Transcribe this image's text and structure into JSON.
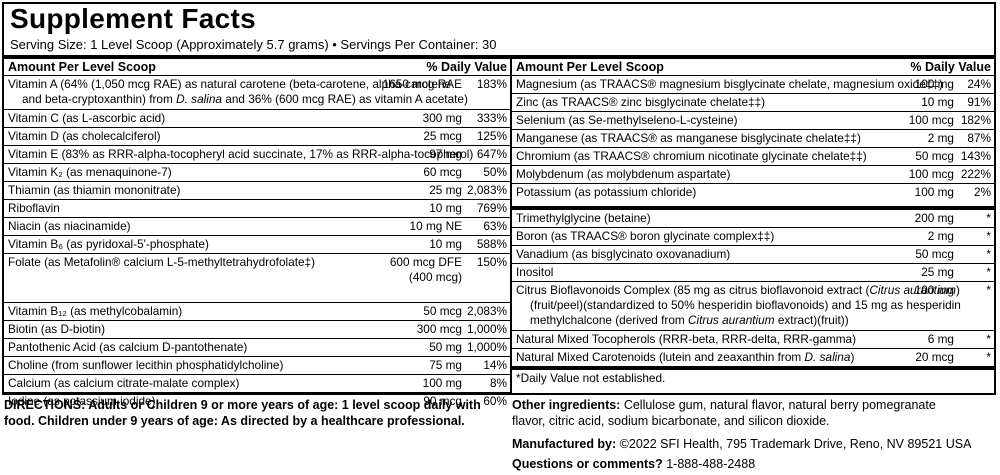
{
  "title": "Supplement Facts",
  "serving": "Serving Size: 1 Level Scoop (Approximately 5.7 grams) • Servings Per Container: 30",
  "header": {
    "amount": "Amount Per Level Scoop",
    "dv": "% Daily Value"
  },
  "left_rows": [
    {
      "lines": [
        "Vitamin A (64% (1,050 mcg RAE) as natural carotene (beta-carotene, alpha-carotene",
        "and beta-cryptoxanthin) from D. salina and 36% (600 mcg RAE) as vitamin A acetate)"
      ],
      "amount": "1650 mcg RAE",
      "dv": "183%"
    },
    {
      "lines": [
        "Vitamin C (as L-ascorbic acid)"
      ],
      "amount": "300 mg",
      "dv": "333%"
    },
    {
      "lines": [
        "Vitamin D (as cholecalciferol)"
      ],
      "amount": "25 mcg",
      "dv": "125%"
    },
    {
      "lines": [
        "Vitamin E (83% as RRR-alpha-tocopheryl acid succinate, 17% as RRR-alpha-tocopherol)"
      ],
      "amount": "97 mg",
      "dv": "647%"
    },
    {
      "lines": [
        "Vitamin K₂ (as menaquinone-7)"
      ],
      "amount": "60 mcg",
      "dv": "50%"
    },
    {
      "lines": [
        "Thiamin (as thiamin mononitrate)"
      ],
      "amount": "25 mg",
      "dv": "2,083%"
    },
    {
      "lines": [
        "Riboflavin"
      ],
      "amount": "10 mg",
      "dv": "769%"
    },
    {
      "lines": [
        "Niacin (as niacinamide)"
      ],
      "amount": "10 mg NE",
      "dv": "63%"
    },
    {
      "lines": [
        "Vitamin B₆ (as pyridoxal-5'-phosphate)"
      ],
      "amount": "10 mg",
      "dv": "588%"
    },
    {
      "lines": [
        "Folate (as Metafolin® calcium L-5-methyltetrahydrofolate‡)",
        "",
        ""
      ],
      "amount": "600 mcg DFE",
      "amount2": "(400 mcg)",
      "dv": "150%"
    },
    {
      "lines": [
        "Vitamin B₁₂ (as methylcobalamin)"
      ],
      "amount": "50 mcg",
      "dv": "2,083%"
    },
    {
      "lines": [
        "Biotin (as D-biotin)"
      ],
      "amount": "300 mcg",
      "dv": "1,000%"
    },
    {
      "lines": [
        "Pantothenic Acid (as calcium D-pantothenate)"
      ],
      "amount": "50 mg",
      "dv": "1,000%"
    },
    {
      "lines": [
        "Choline (from sunflower lecithin phosphatidylcholine)"
      ],
      "amount": "75 mg",
      "dv": "14%"
    },
    {
      "lines": [
        "Calcium (as calcium citrate-malate complex)"
      ],
      "amount": "100 mg",
      "dv": "8%"
    },
    {
      "lines": [
        "Iodine (as potassium iodide)"
      ],
      "amount": "90 mcg",
      "dv": "60%"
    }
  ],
  "right_rows": [
    {
      "lines": [
        "Magnesium (as TRAACS® magnesium bisglycinate chelate, magnesium oxide‡‡)"
      ],
      "amount": "100 mg",
      "dv": "24%"
    },
    {
      "lines": [
        "Zinc (as TRAACS® zinc bisglycinate chelate‡‡)"
      ],
      "amount": "10 mg",
      "dv": "91%"
    },
    {
      "lines": [
        "Selenium (as Se-methylseleno-L-cysteine)"
      ],
      "amount": "100 mcg",
      "dv": "182%"
    },
    {
      "lines": [
        "Manganese (as TRAACS® as manganese bisglycinate chelate‡‡)"
      ],
      "amount": "2 mg",
      "dv": "87%"
    },
    {
      "lines": [
        "Chromium (as TRAACS® chromium nicotinate glycinate chelate‡‡)"
      ],
      "amount": "50 mcg",
      "dv": "143%"
    },
    {
      "lines": [
        "Molybdenum (as molybdenum aspartate)"
      ],
      "amount": "100 mcg",
      "dv": "222%"
    },
    {
      "lines": [
        "Potassium (as potassium chloride)"
      ],
      "amount": "100 mg",
      "dv": "2%"
    },
    {
      "lines": [
        "Trimethylglycine (betaine)"
      ],
      "amount": "200 mg",
      "dv": "*"
    },
    {
      "lines": [
        "Boron (as TRAACS® boron glycinate complex‡‡)"
      ],
      "amount": "2 mg",
      "dv": "*"
    },
    {
      "lines": [
        "Vanadium (as bisglycinato oxovanadium)"
      ],
      "amount": "50 mcg",
      "dv": "*"
    },
    {
      "lines": [
        "Inositol"
      ],
      "amount": "25 mg",
      "dv": "*"
    },
    {
      "lines": [
        "Citrus Bioflavonoids Complex (85 mg as citrus bioflavonoid extract (Citrus aurantium)",
        "(fruit/peel)(standardized to 50% hesperidin bioflavonoids) and 15 mg as hesperidin",
        "methylchalcone (derived from Citrus aurantium extract)(fruit))"
      ],
      "amount": "100 mg",
      "dv": "*"
    },
    {
      "lines": [
        "Natural Mixed Tocopherols (RRR-beta, RRR-delta, RRR-gamma)"
      ],
      "amount": "6 mg",
      "dv": "*"
    },
    {
      "lines": [
        "Natural Mixed Carotenoids (lutein and zeaxanthin from D. salina)"
      ],
      "amount": "20 mcg",
      "dv": "*"
    },
    {
      "lines": [
        "*Daily Value not established."
      ],
      "amount": "",
      "dv": ""
    }
  ],
  "directions": {
    "line1": "DIRECTIONS: Adults or Children 9 or more years of age: 1 level scoop daily with",
    "line2": "food. Children under 9 years of age: As directed by a healthcare professional."
  },
  "other": {
    "label": "Other ingredients:",
    "line1": " Cellulose gum, natural flavor, natural berry pomegranate",
    "line2": "flavor, citric acid, sodium bicarbonate, and silicon dioxide."
  },
  "manufactured": {
    "label": "Manufactured by:",
    "text": " ©2022 SFI Health, 795 Trademark Drive, Reno, NV 89521 USA"
  },
  "questions": {
    "label": "Questions or comments?",
    "text": " 1-888-488-2488"
  }
}
